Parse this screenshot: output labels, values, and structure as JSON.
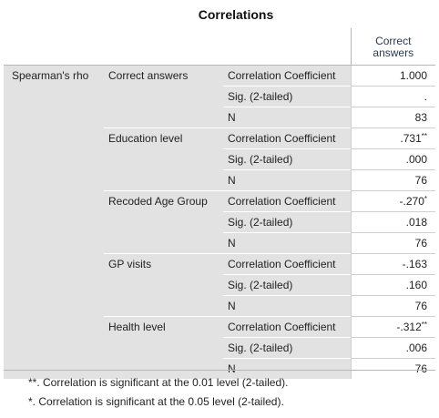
{
  "title": "Correlations",
  "column_header": [
    "Correct",
    "answers"
  ],
  "method": "Spearman's rho",
  "rows": [
    {
      "variable": "Correct answers",
      "coef": "1.000",
      "coef_sig": "",
      "sig": ".",
      "n": "83"
    },
    {
      "variable": "Education level",
      "coef": ".731",
      "coef_sig": "**",
      "sig": ".000",
      "n": "76"
    },
    {
      "variable": "Recoded Age Group",
      "coef": "-.270",
      "coef_sig": "*",
      "sig": ".018",
      "n": "76"
    },
    {
      "variable": "GP visits",
      "coef": "-.163",
      "coef_sig": "",
      "sig": ".160",
      "n": "76"
    },
    {
      "variable": "Health level",
      "coef": "-.312",
      "coef_sig": "**",
      "sig": ".006",
      "n": "76"
    }
  ],
  "stat_labels": {
    "coef": "Correlation Coefficient",
    "sig": "Sig. (2-tailed)",
    "n": "N"
  },
  "footnotes": [
    "**. Correlation is significant at the 0.01 level (2-tailed).",
    "*. Correlation is significant at the 0.05 level (2-tailed)."
  ]
}
